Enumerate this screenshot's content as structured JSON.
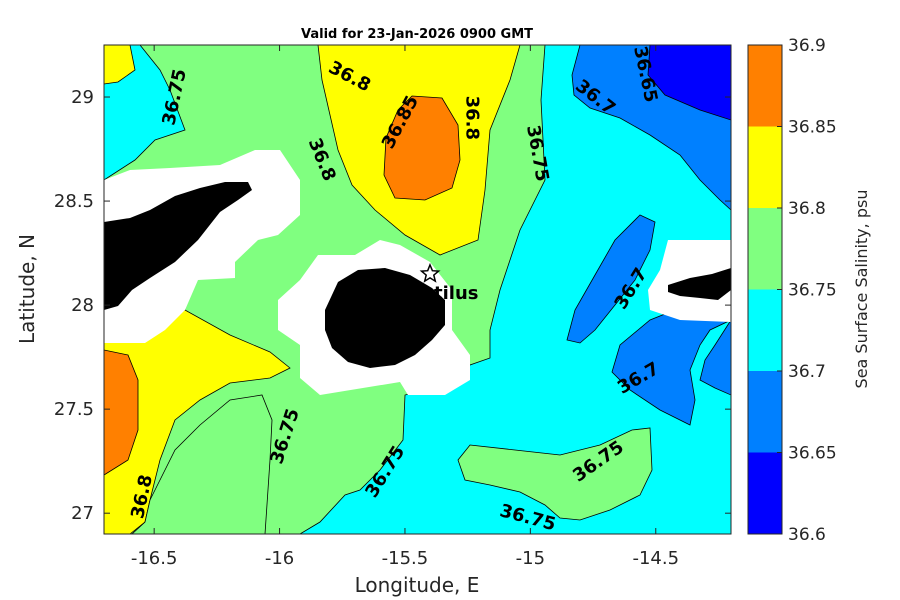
{
  "chart_data": {
    "type": "heatmap",
    "title": "Valid for 23-Jan-2026 0900 GMT",
    "xlabel": "Longitude, E",
    "ylabel": "Latitude, N",
    "xlim": [
      -16.7,
      -14.2
    ],
    "ylim": [
      26.9,
      29.25
    ],
    "x_ticks": [
      -16.5,
      -16,
      -15.5,
      -15,
      -14.5
    ],
    "x_tick_labels": [
      "-16.5",
      "-16",
      "-15.5",
      "-15",
      "-14.5"
    ],
    "y_ticks": [
      27,
      27.5,
      28,
      28.5,
      29
    ],
    "y_tick_labels": [
      "27",
      "27.5",
      "28",
      "28.5",
      "29"
    ],
    "colorbar": {
      "label": "Sea Surface Salinity, psu",
      "levels": [
        36.6,
        36.65,
        36.7,
        36.75,
        36.8,
        36.85,
        36.9
      ],
      "level_labels": [
        "36.6",
        "36.65",
        "36.7",
        "36.75",
        "36.8",
        "36.85",
        "36.9"
      ],
      "colors": [
        "#0000ff",
        "#0080ff",
        "#00ffff",
        "#80ff80",
        "#ffff00",
        "#ff8000"
      ]
    },
    "contour_labels": [
      {
        "text": "36.75",
        "lon": -16.42,
        "lat": 29.0,
        "angle": -78
      },
      {
        "text": "36.8",
        "lon": -15.72,
        "lat": 29.1,
        "angle": 28
      },
      {
        "text": "36.85",
        "lon": -15.52,
        "lat": 28.88,
        "angle": -62
      },
      {
        "text": "36.8",
        "lon": -15.23,
        "lat": 28.9,
        "angle": 90
      },
      {
        "text": "36.75",
        "lon": -14.97,
        "lat": 28.73,
        "angle": 80
      },
      {
        "text": "36.8",
        "lon": -15.83,
        "lat": 28.7,
        "angle": 68
      },
      {
        "text": "36.7",
        "lon": -14.74,
        "lat": 29.0,
        "angle": 38
      },
      {
        "text": "36.65",
        "lon": -14.54,
        "lat": 29.11,
        "angle": 78
      },
      {
        "text": "36.7",
        "lon": -14.6,
        "lat": 28.08,
        "angle": -58
      },
      {
        "text": "36.7",
        "lon": -14.57,
        "lat": 27.65,
        "angle": -30
      },
      {
        "text": "36.75",
        "lon": -15.98,
        "lat": 27.37,
        "angle": -72
      },
      {
        "text": "36.75",
        "lon": -15.58,
        "lat": 27.2,
        "angle": -58
      },
      {
        "text": "36.75",
        "lon": -14.73,
        "lat": 27.25,
        "angle": -35
      },
      {
        "text": "36.75",
        "lon": -15.01,
        "lat": 26.98,
        "angle": 15
      },
      {
        "text": "36.8",
        "lon": -16.55,
        "lat": 27.08,
        "angle": -78
      }
    ],
    "station": {
      "name": "tilus",
      "lon": -15.4,
      "lat": 28.15
    }
  }
}
